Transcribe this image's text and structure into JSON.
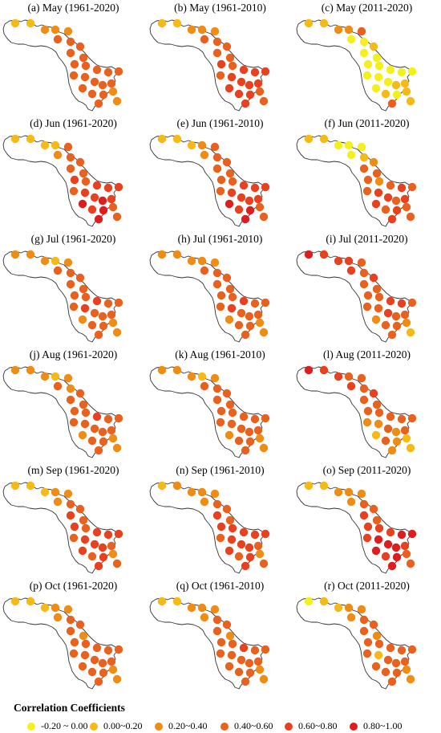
{
  "legend": {
    "title": "Correlation Coefficients",
    "classes": [
      {
        "label": "-0.20 ~ 0.00",
        "color": "#f3f01c"
      },
      {
        "label": "0.00~0.20",
        "color": "#f6ba16"
      },
      {
        "label": "0.20~0.40",
        "color": "#ee8c14"
      },
      {
        "label": "0.40~0.60",
        "color": "#e8611e"
      },
      {
        "label": "0.60~0.80",
        "color": "#e8411f"
      },
      {
        "label": "0.80~1.00",
        "color": "#dd1e1e"
      }
    ]
  },
  "panels": [
    {
      "title": "(a) May (1961-2020)",
      "stations": [
        1,
        1,
        2,
        2,
        2,
        3,
        3,
        3,
        3,
        3,
        3,
        3,
        3,
        3,
        3,
        3,
        3,
        3,
        3,
        3,
        3,
        3,
        3,
        2,
        3,
        2
      ]
    },
    {
      "title": "(b) May (1961-2010)",
      "stations": [
        1,
        1,
        2,
        2,
        2,
        3,
        3,
        3,
        3,
        3,
        4,
        3,
        4,
        4,
        4,
        3,
        4,
        4,
        4,
        4,
        4,
        4,
        4,
        3,
        4,
        3
      ]
    },
    {
      "title": "(c) May (2011-2020)",
      "stations": [
        1,
        1,
        2,
        2,
        3,
        0,
        0,
        1,
        0,
        0,
        0,
        0,
        0,
        0,
        0,
        0,
        0,
        0,
        1,
        1,
        0,
        1,
        0,
        1,
        3,
        1
      ]
    },
    {
      "title": "(d) Jun (1961-2020)",
      "stations": [
        1,
        1,
        1,
        1,
        3,
        2,
        3,
        3,
        3,
        3,
        4,
        3,
        4,
        4,
        4,
        3,
        4,
        4,
        5,
        4,
        5,
        4,
        5,
        3,
        5,
        3
      ]
    },
    {
      "title": "(e) Jun (1961-2010)",
      "stations": [
        1,
        1,
        1,
        2,
        3,
        2,
        3,
        3,
        3,
        3,
        3,
        3,
        4,
        4,
        4,
        3,
        4,
        4,
        4,
        4,
        5,
        4,
        5,
        3,
        5,
        3
      ]
    },
    {
      "title": "(f) Jun (2011-2020)",
      "stations": [
        1,
        1,
        0,
        0,
        0,
        0,
        1,
        2,
        3,
        3,
        3,
        2,
        3,
        4,
        3,
        3,
        4,
        4,
        3,
        4,
        4,
        3,
        4,
        3,
        4,
        3
      ]
    },
    {
      "title": "(g) Jul (1961-2020)",
      "stations": [
        2,
        2,
        2,
        1,
        2,
        3,
        3,
        3,
        3,
        3,
        3,
        3,
        4,
        3,
        3,
        3,
        4,
        3,
        3,
        3,
        2,
        3,
        3,
        2,
        3,
        2
      ]
    },
    {
      "title": "(h) Jul (1961-2010)",
      "stations": [
        2,
        2,
        2,
        2,
        2,
        3,
        3,
        3,
        3,
        3,
        3,
        3,
        4,
        3,
        3,
        3,
        4,
        3,
        3,
        3,
        2,
        3,
        3,
        2,
        3,
        2
      ]
    },
    {
      "title": "(i) Jul (2011-2020)",
      "stations": [
        5,
        4,
        4,
        4,
        3,
        4,
        3,
        4,
        3,
        3,
        3,
        3,
        4,
        4,
        3,
        3,
        3,
        4,
        3,
        3,
        2,
        3,
        3,
        2,
        3,
        1
      ]
    },
    {
      "title": "(j) Aug (1961-2020)",
      "stations": [
        2,
        2,
        2,
        1,
        2,
        3,
        2,
        3,
        3,
        3,
        3,
        3,
        4,
        3,
        3,
        3,
        3,
        3,
        3,
        3,
        2,
        3,
        3,
        2,
        3,
        2
      ]
    },
    {
      "title": "(k) Aug (1961-2010)",
      "stations": [
        2,
        2,
        2,
        1,
        2,
        3,
        3,
        3,
        3,
        3,
        3,
        3,
        3,
        3,
        3,
        3,
        3,
        3,
        3,
        3,
        2,
        3,
        3,
        2,
        3,
        2
      ]
    },
    {
      "title": "(l) Aug (2011-2020)",
      "stations": [
        5,
        4,
        4,
        3,
        3,
        4,
        3,
        4,
        3,
        3,
        3,
        3,
        3,
        3,
        3,
        2,
        2,
        3,
        2,
        3,
        1,
        3,
        2,
        1,
        2,
        1
      ]
    },
    {
      "title": "(m) Sep (1961-2020)",
      "stations": [
        1,
        1,
        1,
        2,
        2,
        2,
        3,
        3,
        4,
        3,
        4,
        3,
        4,
        4,
        4,
        3,
        4,
        4,
        4,
        3,
        4,
        3,
        4,
        2,
        4,
        3
      ]
    },
    {
      "title": "(n) Sep (1961-2010)",
      "stations": [
        1,
        2,
        2,
        2,
        2,
        2,
        3,
        3,
        4,
        3,
        4,
        4,
        4,
        4,
        4,
        3,
        4,
        4,
        4,
        3,
        4,
        3,
        4,
        2,
        4,
        3
      ]
    },
    {
      "title": "(o) Sep (2011-2020)",
      "stations": [
        1,
        1,
        2,
        2,
        2,
        2,
        3,
        3,
        4,
        3,
        4,
        4,
        4,
        5,
        5,
        4,
        5,
        5,
        5,
        4,
        5,
        4,
        5,
        3,
        5,
        3
      ]
    },
    {
      "title": "(p) Oct (1961-2020)",
      "stations": [
        1,
        1,
        1,
        2,
        2,
        2,
        3,
        3,
        3,
        2,
        3,
        3,
        3,
        3,
        3,
        3,
        3,
        3,
        3,
        3,
        3,
        3,
        3,
        2,
        3,
        2
      ]
    },
    {
      "title": "(q) Oct (1961-2010)",
      "stations": [
        1,
        1,
        2,
        2,
        2,
        2,
        3,
        3,
        3,
        2,
        3,
        3,
        4,
        3,
        3,
        3,
        3,
        3,
        3,
        3,
        3,
        3,
        3,
        2,
        3,
        2
      ]
    },
    {
      "title": "(r) Oct (2011-2020)",
      "stations": [
        0,
        1,
        1,
        2,
        2,
        2,
        3,
        3,
        3,
        2,
        3,
        3,
        3,
        3,
        3,
        3,
        1,
        3,
        3,
        3,
        3,
        3,
        3,
        2,
        3,
        2
      ]
    }
  ]
}
